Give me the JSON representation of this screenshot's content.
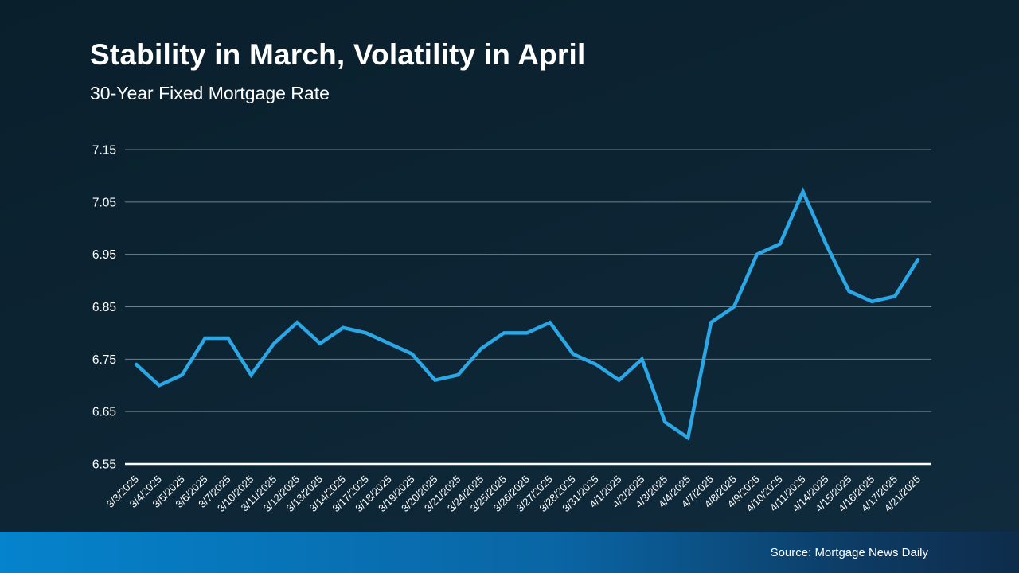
{
  "slide": {
    "title": "Stability in March, Volatility in April",
    "subtitle": "30-Year Fixed Mortgage Rate",
    "source": "Source: Mortgage News Daily"
  },
  "colors": {
    "background_top": "#0a1f2c",
    "background_bottom": "#102c3e",
    "line": "#2AA7E4",
    "gridline": "#8FA0A9",
    "axis": "#FFFFFF",
    "text": "#FFFFFF",
    "bar_left": "#0583CC",
    "bar_mid": "#0A65A4",
    "bar_right": "#0E2C4B"
  },
  "chart_data": {
    "type": "line",
    "title": "Stability in March, Volatility in April",
    "subtitle": "30-Year Fixed Mortgage Rate",
    "x": [
      "3/3/2025",
      "3/4/2025",
      "3/5/2025",
      "3/6/2025",
      "3/7/2025",
      "3/10/2025",
      "3/11/2025",
      "3/12/2025",
      "3/13/2025",
      "3/14/2025",
      "3/17/2025",
      "3/18/2025",
      "3/19/2025",
      "3/20/2025",
      "3/21/2025",
      "3/24/2025",
      "3/25/2025",
      "3/26/2025",
      "3/27/2025",
      "3/28/2025",
      "3/31/2025",
      "4/1/2025",
      "4/2/2025",
      "4/3/2025",
      "4/4/2025",
      "4/7/2025",
      "4/8/2025",
      "4/9/2025",
      "4/10/2025",
      "4/11/2025",
      "4/14/2025",
      "4/15/2025",
      "4/16/2025",
      "4/17/2025",
      "4/21/2025"
    ],
    "series": [
      {
        "name": "30-Year Fixed Mortgage Rate",
        "values": [
          6.74,
          6.7,
          6.72,
          6.79,
          6.79,
          6.72,
          6.78,
          6.82,
          6.78,
          6.81,
          6.8,
          6.78,
          6.76,
          6.71,
          6.72,
          6.77,
          6.8,
          6.8,
          6.82,
          6.76,
          6.74,
          6.71,
          6.75,
          6.63,
          6.6,
          6.82,
          6.85,
          6.95,
          6.97,
          7.07,
          6.97,
          6.88,
          6.86,
          6.87,
          6.94
        ]
      }
    ],
    "ylim": [
      6.55,
      7.15
    ],
    "yticks": [
      6.55,
      6.65,
      6.75,
      6.85,
      6.95,
      7.05,
      7.15
    ],
    "grid": true,
    "legend": false,
    "xlabel": "",
    "ylabel": "",
    "source": "Source: Mortgage News Daily"
  }
}
